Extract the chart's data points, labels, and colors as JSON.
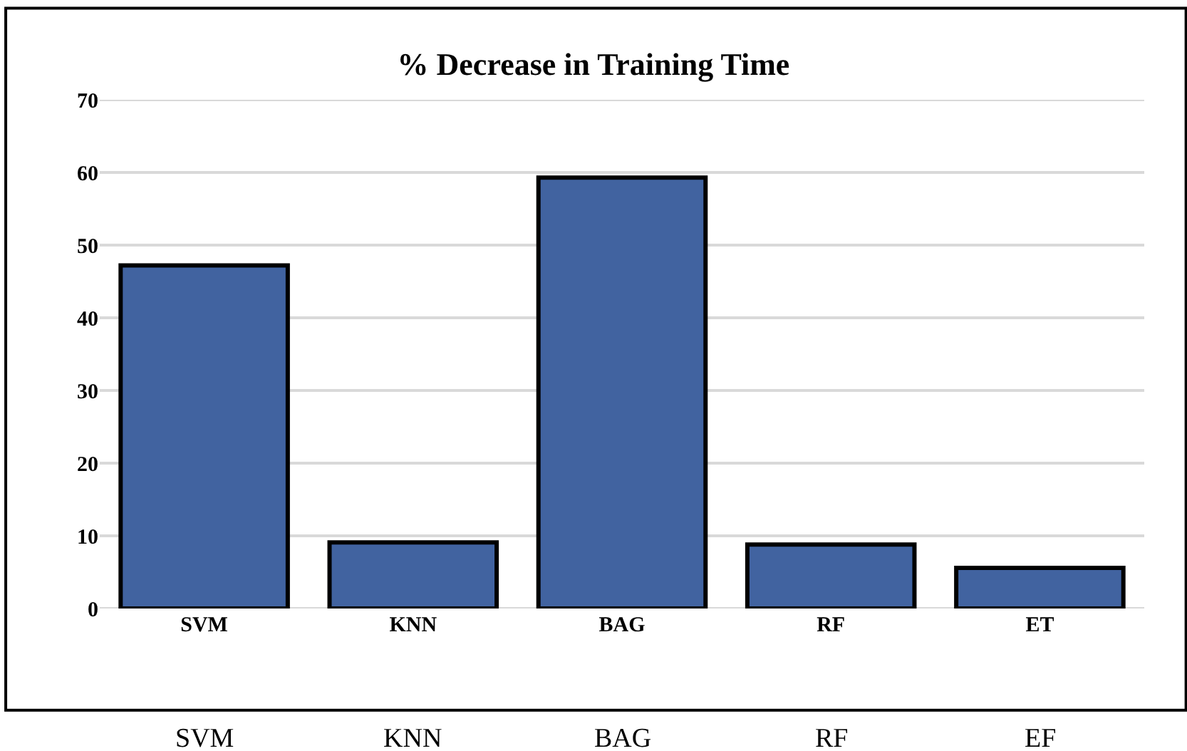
{
  "chart_data": {
    "type": "bar",
    "title": "% Decrease in Training Time",
    "categories": [
      "SVM",
      "KNN",
      "BAG",
      "RF",
      "ET"
    ],
    "values": [
      47.2,
      9.1,
      59.3,
      8.8,
      5.6
    ],
    "color": "#4163a0",
    "ylim": [
      0,
      70
    ],
    "yticks": [
      0,
      10,
      20,
      30,
      40,
      50,
      60,
      70
    ],
    "grid": "y",
    "annotations": [
      "SVM",
      "KNN",
      "BAG",
      "RF",
      "EF"
    ]
  }
}
